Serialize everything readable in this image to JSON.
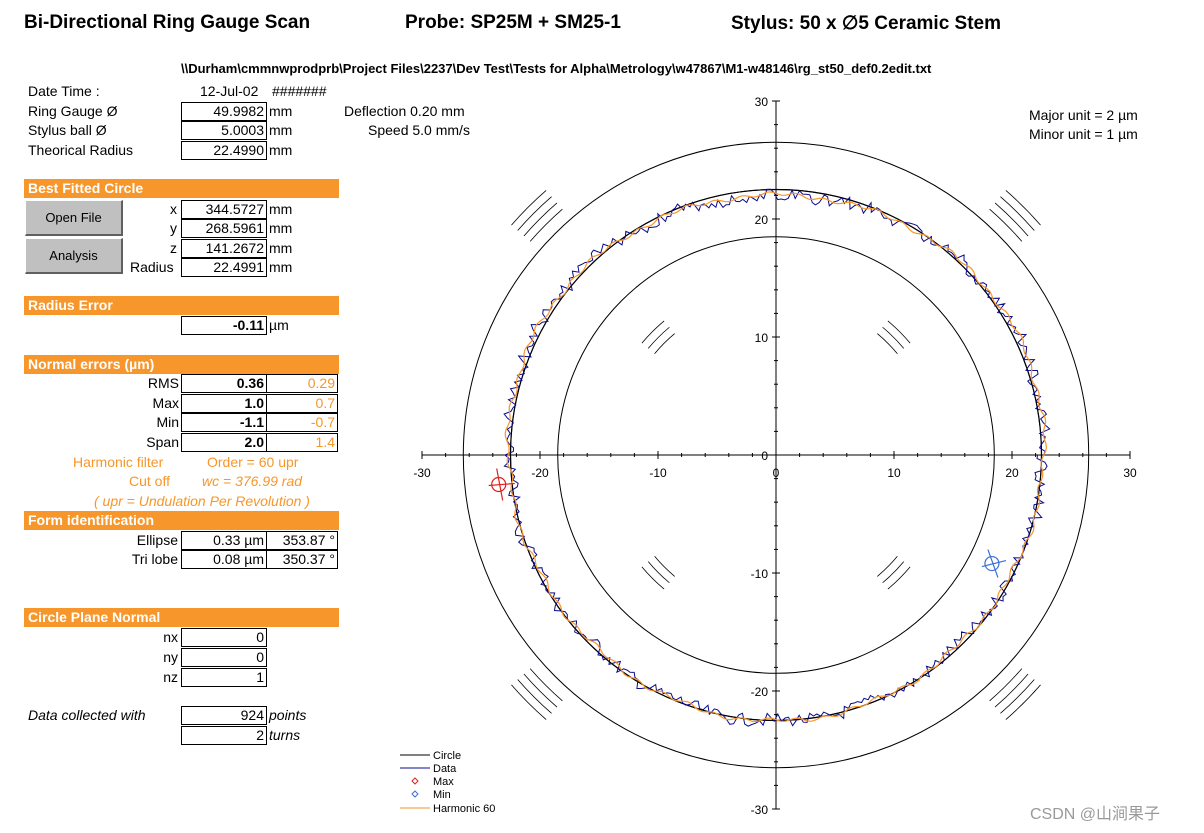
{
  "header": {
    "title": "Bi-Directional Ring Gauge Scan",
    "probe": "Probe: SP25M + SM25-1",
    "stylus": "Stylus: 50 x ∅5 Ceramic Stem",
    "file_path": "\\\\Durham\\cmmnwprodprb\\Project Files\\2237\\Dev Test\\Tests for Alpha\\Metrology\\w47867\\M1-w48146\\rg_st50_def0.2edit.txt"
  },
  "params": {
    "date_label": "Date Time :",
    "date_value": "12-Jul-02",
    "time_value": "#######",
    "ring_label": "Ring Gauge Ø",
    "ring_value": "49.9982",
    "stylus_label": "Stylus ball Ø",
    "stylus_value": "5.0003",
    "radius_label": "Theorical Radius",
    "radius_value": "22.4990",
    "unit_mm": "mm",
    "deflection": "Deflection 0.20 mm",
    "speed": "Speed 5.0 mm/s"
  },
  "fitted": {
    "title": "Best Fitted Circle",
    "open_file": "Open File",
    "analysis": "Analysis",
    "x_label": "x",
    "x_value": "344.5727",
    "y_label": "y",
    "y_value": "268.5961",
    "z_label": "z",
    "z_value": "141.2672",
    "r_label": "Radius",
    "r_value": "22.4991"
  },
  "radius_error": {
    "title": "Radius Error",
    "value": "-0.11",
    "unit": "µm"
  },
  "normal_errors": {
    "title": "Normal errors (µm)",
    "rows": [
      {
        "label": "RMS",
        "value": "0.36",
        "harmonic": "0.29"
      },
      {
        "label": "Max",
        "value": "1.0",
        "harmonic": "0.7"
      },
      {
        "label": "Min",
        "value": "-1.1",
        "harmonic": "-0.7"
      },
      {
        "label": "Span",
        "value": "2.0",
        "harmonic": "1.4"
      }
    ],
    "filter_label": "Harmonic filter",
    "filter_value": "Order =  60  upr",
    "cutoff_label": "Cut off",
    "cutoff_value": "wc =  376.99  rad",
    "note": "( upr = Undulation Per Revolution )"
  },
  "form": {
    "title": "Form identification",
    "ellipse_label": "Ellipse",
    "ellipse_value": "0.33  µm",
    "ellipse_angle": "353.87  °",
    "trilobe_label": "Tri lobe",
    "trilobe_value": "0.08  µm",
    "trilobe_angle": "350.37  °"
  },
  "plane": {
    "title": "Circle Plane Normal",
    "nx_label": "nx",
    "nx_value": "0",
    "ny_label": "ny",
    "ny_value": "0",
    "nz_label": "nz",
    "nz_value": "1"
  },
  "collected": {
    "label": "Data collected with",
    "points_value": "924",
    "points_unit": "points",
    "turns_value": "2",
    "turns_unit": "turns"
  },
  "chart_data": {
    "type": "scatter",
    "xlim": [
      -30,
      30
    ],
    "ylim": [
      -30,
      30
    ],
    "xticks": [
      "-30",
      "-20",
      "-10",
      "0",
      "10",
      "20",
      "30"
    ],
    "yticks": [
      "30",
      "20",
      "10",
      "0",
      "-10",
      "-20",
      "-30"
    ],
    "units_major": "Major unit = 2 µm",
    "units_minor": "Minor unit = 1 µm",
    "circles_radii": [
      18.5,
      22.5,
      26.5
    ],
    "max_point": {
      "x": -23.5,
      "y": -2.5
    },
    "min_point": {
      "x": 18.3,
      "y": -9.2
    },
    "legend": [
      "Circle",
      "Data",
      "Max",
      "Min",
      "Harmonic 60"
    ],
    "colors": {
      "circle": "#000000",
      "data": "#0a0a8c",
      "max": "#e02020",
      "min": "#3a6fd8",
      "harmonic": "#f7962a"
    }
  },
  "watermark": "CSDN @山涧果子"
}
